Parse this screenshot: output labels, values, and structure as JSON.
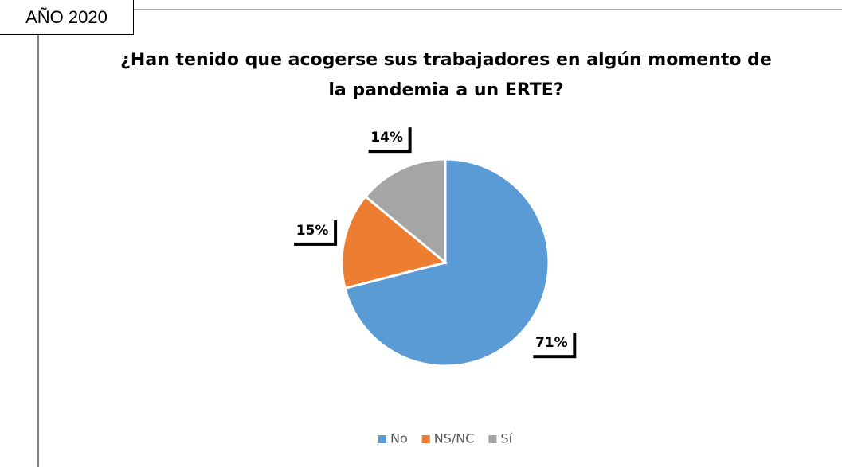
{
  "header": "AÑO 2020",
  "chart_data": {
    "type": "pie",
    "title": "¿Han tenido que acogerse sus trabajadores en algún momento de la pandemia a un ERTE?",
    "categories": [
      "No",
      "NS/NC",
      "Sí"
    ],
    "values": [
      71,
      15,
      14
    ],
    "value_labels": [
      "71%",
      "15%",
      "14%"
    ],
    "colors": [
      "#5b9bd5",
      "#ed7d31",
      "#a5a5a5"
    ],
    "legend": "bottom"
  }
}
